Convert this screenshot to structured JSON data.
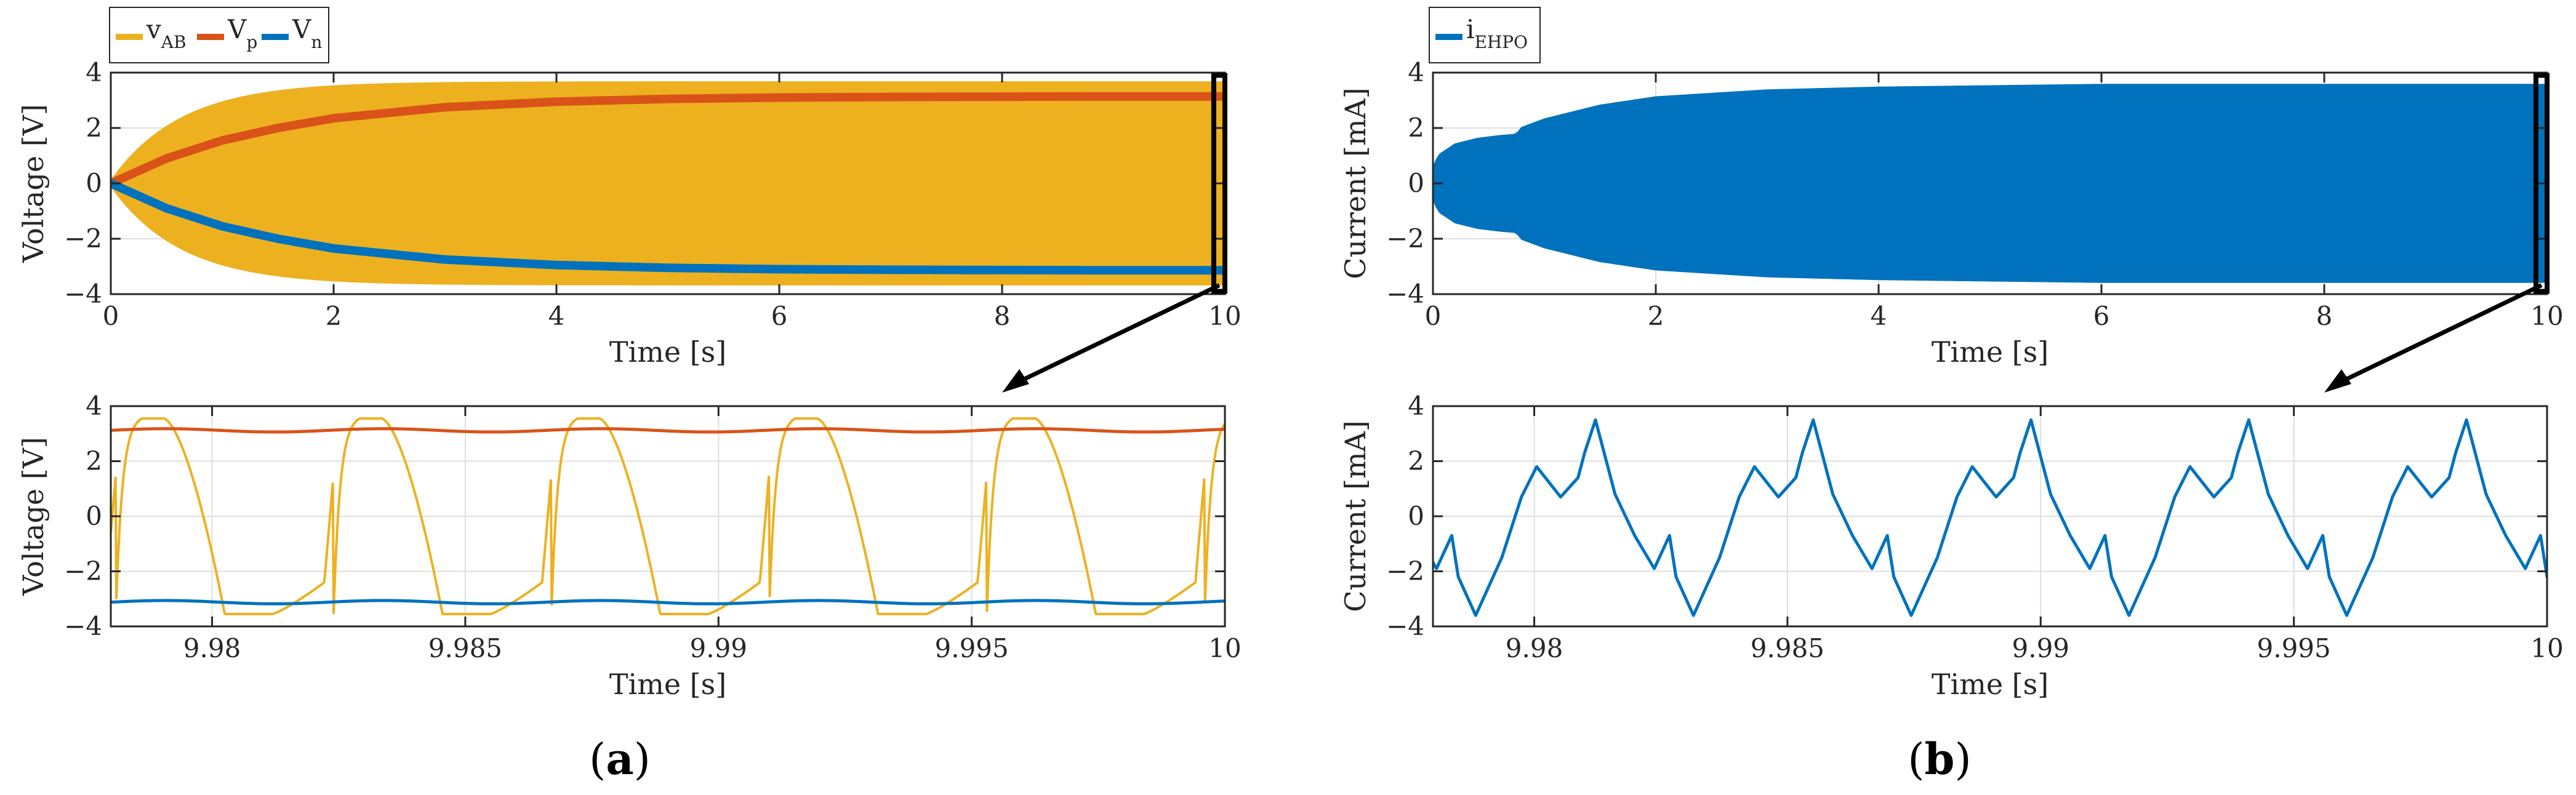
{
  "colors": {
    "vab": "#EDB120",
    "vp": "#D95319",
    "vn": "#0072BD",
    "iehpo": "#0072BD",
    "axis": "#262626",
    "grid": "#DFDFDF"
  },
  "panel_labels": [
    {
      "open": "(",
      "letter": "a",
      "close": ")"
    },
    {
      "open": "(",
      "letter": "b",
      "close": ")"
    }
  ],
  "chart_data": [
    {
      "id": "a_top",
      "type": "line",
      "xlabel": "Time [s]",
      "ylabel": "Voltage [V]",
      "xlim": [
        0,
        10
      ],
      "ylim": [
        -4,
        4
      ],
      "xticks": [
        0,
        2,
        4,
        6,
        8,
        10
      ],
      "yticks": [
        -4,
        -2,
        0,
        2,
        4
      ],
      "grid": true,
      "legend": {
        "position": "top-left-outside",
        "entries": [
          {
            "series": "vab",
            "main": "v",
            "sub": "AB"
          },
          {
            "series": "vp",
            "main": "V",
            "sub": "p"
          },
          {
            "series": "vn",
            "main": "V",
            "sub": "n"
          }
        ]
      },
      "series": [
        {
          "name": "v_AB",
          "color": "vab",
          "style": "envelope",
          "amplitude_final": 3.6,
          "time_constant_s": 2.0
        },
        {
          "name": "V_p",
          "color": "vp",
          "x": [
            0,
            0.5,
            1,
            1.5,
            2,
            3,
            4,
            5,
            6,
            7,
            8,
            9,
            10
          ],
          "y": [
            0,
            0.9,
            1.55,
            2.0,
            2.35,
            2.75,
            2.95,
            3.05,
            3.1,
            3.12,
            3.13,
            3.14,
            3.14
          ]
        },
        {
          "name": "V_n",
          "color": "vn",
          "x": [
            0,
            0.5,
            1,
            1.5,
            2,
            3,
            4,
            5,
            6,
            7,
            8,
            9,
            10
          ],
          "y": [
            0,
            -0.9,
            -1.55,
            -2.0,
            -2.35,
            -2.75,
            -2.95,
            -3.05,
            -3.1,
            -3.12,
            -3.13,
            -3.14,
            -3.14
          ]
        }
      ],
      "zoom_box": {
        "x": [
          9.9,
          10
        ],
        "y": [
          -3.9,
          3.9
        ]
      }
    },
    {
      "id": "a_bottom",
      "type": "line",
      "xlabel": "Time [s]",
      "ylabel": "Voltage [V]",
      "xlim": [
        9.978,
        10
      ],
      "ylim": [
        -4,
        4
      ],
      "xticks": [
        9.98,
        9.985,
        9.99,
        9.995,
        10
      ],
      "xticklabels": [
        "9.98",
        "9.985",
        "9.99",
        "9.995",
        "10"
      ],
      "yticks": [
        -4,
        -2,
        0,
        2,
        4
      ],
      "grid": true,
      "series": [
        {
          "name": "v_AB",
          "color": "vab",
          "style": "square_wave",
          "period_s": 0.0043,
          "first_rise_s": 9.9781,
          "high": 3.55,
          "low": -3.55
        },
        {
          "name": "V_p",
          "color": "vp",
          "mean": 3.12,
          "ripple": 0.06
        },
        {
          "name": "V_n",
          "color": "vn",
          "mean": -3.12,
          "ripple": 0.06
        }
      ]
    },
    {
      "id": "b_top",
      "type": "line",
      "xlabel": "Time [s]",
      "ylabel": "Current [mA]",
      "xlim": [
        0,
        10
      ],
      "ylim": [
        -4,
        4
      ],
      "xticks": [
        0,
        2,
        4,
        6,
        8,
        10
      ],
      "yticks": [
        -4,
        -2,
        0,
        2,
        4
      ],
      "grid": true,
      "legend": {
        "position": "top-left-outside",
        "entries": [
          {
            "series": "iehpo",
            "main": "i",
            "sub": "EHPO"
          }
        ]
      },
      "series": [
        {
          "name": "i_EHPO",
          "color": "iehpo",
          "style": "envelope",
          "x": [
            0,
            0.05,
            0.2,
            0.4,
            0.6,
            0.75,
            0.8,
            1.0,
            1.5,
            2.0,
            3.0,
            4.0,
            5.0,
            6.0,
            7.0,
            8.0,
            10.0
          ],
          "amplitude": [
            0.5,
            1.0,
            1.4,
            1.6,
            1.7,
            1.75,
            2.0,
            2.3,
            2.8,
            3.1,
            3.35,
            3.45,
            3.5,
            3.55,
            3.55,
            3.55,
            3.55
          ]
        }
      ],
      "zoom_box": {
        "x": [
          9.9,
          10
        ],
        "y": [
          -3.9,
          3.9
        ]
      }
    },
    {
      "id": "b_bottom",
      "type": "line",
      "xlabel": "Time [s]",
      "ylabel": "Current [mA]",
      "xlim": [
        9.978,
        10
      ],
      "ylim": [
        -4,
        4
      ],
      "xticks": [
        9.98,
        9.985,
        9.99,
        9.995,
        10
      ],
      "xticklabels": [
        "9.98",
        "9.985",
        "9.99",
        "9.995",
        "10"
      ],
      "yticks": [
        -4,
        -2,
        0,
        2,
        4
      ],
      "grid": true,
      "series": [
        {
          "name": "i_EHPO",
          "color": "iehpo",
          "period_s": 0.0043,
          "cycle_start_s": 9.9785,
          "cycle_phase": [
            0,
            0.08,
            0.2,
            0.29,
            0.36,
            0.47,
            0.55,
            0.58,
            0.63,
            0.72,
            0.81,
            0.9,
            0.97,
            1.0
          ],
          "cycle_values": [
            -2.2,
            -3.6,
            -1.5,
            0.7,
            1.8,
            0.7,
            1.4,
            2.3,
            3.5,
            0.8,
            -0.7,
            -1.9,
            -0.7,
            -2.2
          ]
        }
      ]
    }
  ]
}
